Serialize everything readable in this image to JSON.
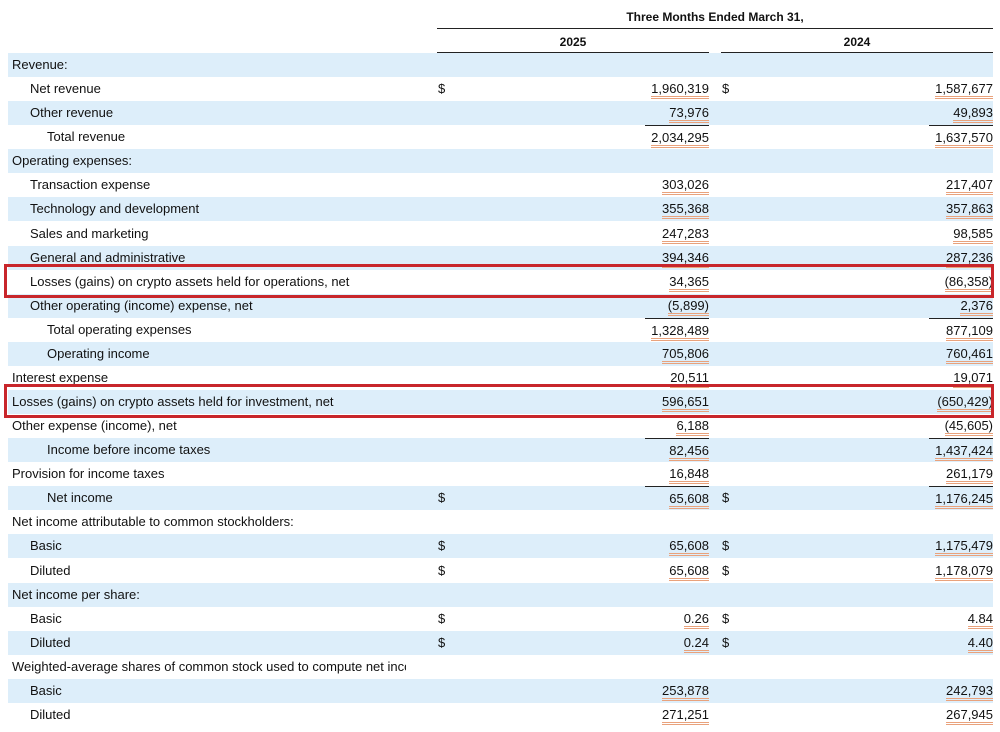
{
  "header": {
    "title": "Three Months Ended March 31,",
    "columns": [
      "2025",
      "2024"
    ]
  },
  "table": {
    "rows": [
      {
        "label": "Revenue:"
      },
      {
        "label": "Net revenue",
        "cur_2025": "$",
        "value_2025": "1,960,319",
        "cur_2024": "$",
        "value_2024": "1,587,677"
      },
      {
        "label": "Other revenue",
        "value_2025": "73,976",
        "value_2024": "49,893"
      },
      {
        "label": "Total revenue",
        "value_2025": "2,034,295",
        "value_2024": "1,637,570"
      },
      {
        "label": "Operating expenses:"
      },
      {
        "label": "Transaction expense",
        "value_2025": "303,026",
        "value_2024": "217,407"
      },
      {
        "label": "Technology and development",
        "value_2025": "355,368",
        "value_2024": "357,863"
      },
      {
        "label": "Sales and marketing",
        "value_2025": "247,283",
        "value_2024": "98,585"
      },
      {
        "label": "General and administrative",
        "value_2025": "394,346",
        "value_2024": "287,236"
      },
      {
        "label": "Losses (gains) on crypto assets held for operations, net",
        "value_2025": "34,365",
        "value_2024": "(86,358)"
      },
      {
        "label": "Other operating (income) expense, net",
        "value_2025": "(5,899)",
        "value_2024": "2,376"
      },
      {
        "label": "Total operating expenses",
        "value_2025": "1,328,489",
        "value_2024": "877,109"
      },
      {
        "label": "Operating income",
        "value_2025": "705,806",
        "value_2024": "760,461"
      },
      {
        "label": "Interest expense",
        "value_2025": "20,511",
        "value_2024": "19,071"
      },
      {
        "label": "Losses (gains) on crypto assets held for investment, net",
        "value_2025": "596,651",
        "value_2024": "(650,429)"
      },
      {
        "label": "Other expense (income), net",
        "value_2025": "6,188",
        "value_2024": "(45,605)"
      },
      {
        "label": "Income before income taxes",
        "value_2025": "82,456",
        "value_2024": "1,437,424"
      },
      {
        "label": "Provision for income taxes",
        "value_2025": "16,848",
        "value_2024": "261,179"
      },
      {
        "label": "Net income",
        "cur_2025": "$",
        "value_2025": "65,608",
        "cur_2024": "$",
        "value_2024": "1,176,245"
      },
      {
        "label": "Net income attributable to common stockholders:"
      },
      {
        "label": "Basic",
        "cur_2025": "$",
        "value_2025": "65,608",
        "cur_2024": "$",
        "value_2024": "1,175,479"
      },
      {
        "label": "Diluted",
        "cur_2025": "$",
        "value_2025": "65,608",
        "cur_2024": "$",
        "value_2024": "1,178,079"
      },
      {
        "label": "Net income per share:"
      },
      {
        "label": "Basic",
        "cur_2025": "$",
        "value_2025": "0.26",
        "cur_2024": "$",
        "value_2024": "4.84"
      },
      {
        "label": "Diluted",
        "cur_2025": "$",
        "value_2025": "0.24",
        "cur_2024": "$",
        "value_2024": "4.40"
      },
      {
        "label": "Weighted-average shares of common stock used to compute net inco"
      },
      {
        "label": "Basic",
        "value_2025": "253,878",
        "value_2024": "242,793"
      },
      {
        "label": "Diluted",
        "value_2025": "271,251",
        "value_2024": "267,945"
      }
    ]
  }
}
